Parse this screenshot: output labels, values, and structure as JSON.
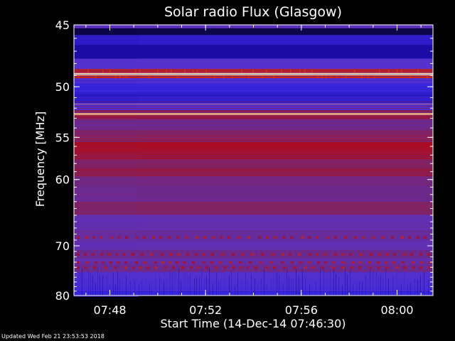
{
  "chart_data": {
    "type": "heatmap",
    "title": "Solar radio Flux (Glasgow)",
    "xlabel": "Start Time (14-Dec-14 07:46:30)",
    "ylabel": "Frequency [MHz]",
    "x_ticks": [
      "07:48",
      "07:52",
      "07:56",
      "08:00"
    ],
    "x_tick_minutes": [
      1.5,
      5.5,
      9.5,
      13.5
    ],
    "x_range_minutes": [
      0,
      15
    ],
    "y_ticks": [
      45,
      50,
      55,
      60,
      70,
      80
    ],
    "y_range_mhz": [
      45,
      80
    ],
    "y_scale": "reciprocal",
    "colormap": [
      "#000000",
      "#1a0aa0",
      "#3a28e0",
      "#5a32c8",
      "#6a2a90",
      "#8a1e50",
      "#b00a1a",
      "#d83010",
      "#ff9a30",
      "#fff4d0"
    ],
    "bands": [
      {
        "mhz": 45.5,
        "level": 0.05
      },
      {
        "mhz": 46.0,
        "level": 0.18
      },
      {
        "mhz": 47.0,
        "level": 0.12
      },
      {
        "mhz": 48.2,
        "level": 0.32
      },
      {
        "mhz": 48.7,
        "level": 0.72
      },
      {
        "mhz": 48.9,
        "level": 0.98
      },
      {
        "mhz": 49.1,
        "level": 0.75
      },
      {
        "mhz": 49.4,
        "level": 0.3
      },
      {
        "mhz": 50.0,
        "level": 0.22
      },
      {
        "mhz": 51.0,
        "level": 0.18
      },
      {
        "mhz": 52.0,
        "level": 0.3
      },
      {
        "mhz": 52.4,
        "level": 0.55
      },
      {
        "mhz": 52.6,
        "level": 0.95
      },
      {
        "mhz": 52.8,
        "level": 0.6
      },
      {
        "mhz": 53.5,
        "level": 0.45
      },
      {
        "mhz": 55.0,
        "level": 0.52
      },
      {
        "mhz": 56.0,
        "level": 0.65
      },
      {
        "mhz": 57.0,
        "level": 0.62
      },
      {
        "mhz": 58.0,
        "level": 0.52
      },
      {
        "mhz": 59.2,
        "level": 0.58
      },
      {
        "mhz": 60.0,
        "level": 0.48
      },
      {
        "mhz": 62.0,
        "level": 0.45
      },
      {
        "mhz": 64.0,
        "level": 0.52
      },
      {
        "mhz": 66.0,
        "level": 0.38
      },
      {
        "mhz": 68.5,
        "level": 0.42
      },
      {
        "mhz": 70.0,
        "level": 0.38
      },
      {
        "mhz": 71.5,
        "level": 0.45
      },
      {
        "mhz": 73.0,
        "level": 0.4
      },
      {
        "mhz": 74.0,
        "level": 0.45
      },
      {
        "mhz": 76.0,
        "level": 0.3
      },
      {
        "mhz": 78.0,
        "level": 0.28
      },
      {
        "mhz": 80.0,
        "level": 0.22
      }
    ],
    "shift_minute": 2.7
  },
  "footer": "Updated Wed Feb 21 23:53:53 2018"
}
